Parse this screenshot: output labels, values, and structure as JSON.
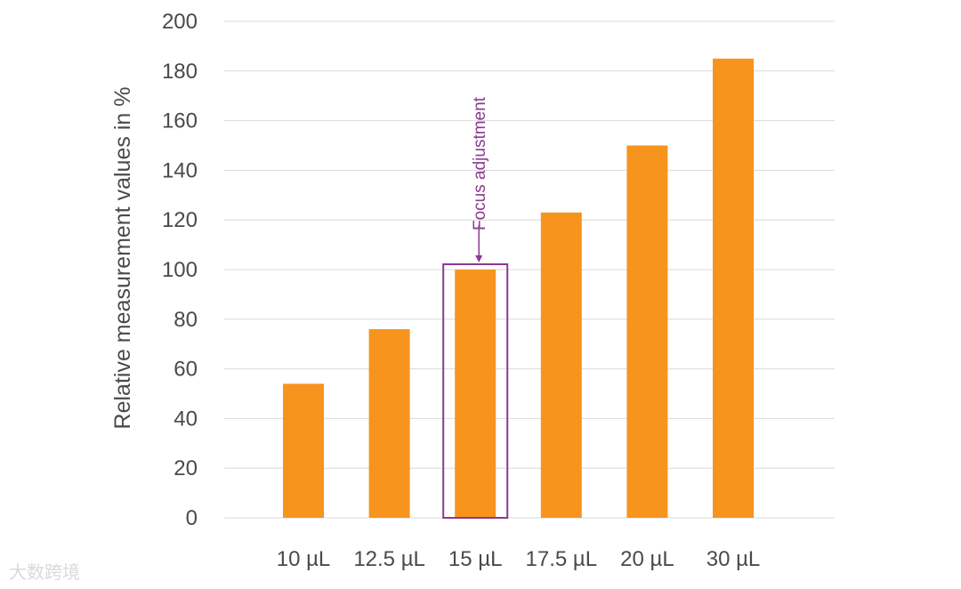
{
  "chart_data": {
    "type": "bar",
    "categories": [
      "10 µL",
      "12.5 µL",
      "15 µL",
      "17.5 µL",
      "20 µL",
      "30 µL"
    ],
    "values": [
      54,
      76,
      100,
      123,
      150,
      185
    ],
    "title": "",
    "xlabel": "",
    "ylabel": "Relative measurement values in %",
    "ylim": [
      0,
      200
    ],
    "yticks": [
      0,
      20,
      40,
      60,
      80,
      100,
      120,
      140,
      160,
      180,
      200
    ],
    "grid": true,
    "bar_color": "#f7941d",
    "annotation": {
      "text": "Focus adjustment",
      "target_category": "15 µL",
      "color": "#8b3a8f"
    }
  },
  "watermark": {
    "text": "大数跨境"
  }
}
